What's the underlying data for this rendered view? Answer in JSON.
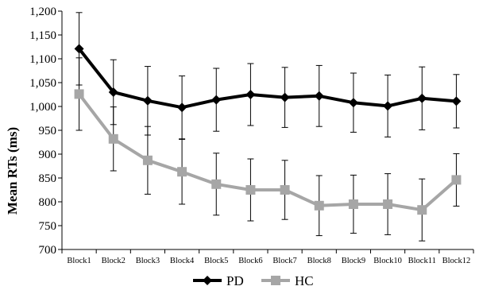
{
  "chart_data": {
    "type": "line",
    "title": "",
    "xlabel": "",
    "ylabel": "Mean RTs (ms)",
    "categories": [
      "Block1",
      "Block2",
      "Block3",
      "Block4",
      "Block5",
      "Block6",
      "Block7",
      "Block8",
      "Block9",
      "Block10",
      "Block11",
      "Block12"
    ],
    "ylim": [
      700,
      1200
    ],
    "yticks": [
      700,
      750,
      800,
      850,
      900,
      950,
      1000,
      1050,
      1100,
      1150,
      1200
    ],
    "ytick_labels": [
      "700",
      "750",
      "800",
      "850",
      "900",
      "950",
      "1,000",
      "1,050",
      "1,100",
      "1,150",
      "1,200"
    ],
    "grid": false,
    "legend_position": "bottom-center",
    "series": [
      {
        "name": "PD",
        "marker": "diamond",
        "color": "#000000",
        "values": [
          1121,
          1030,
          1012,
          998,
          1014,
          1025,
          1019,
          1022,
          1008,
          1001,
          1017,
          1011
        ],
        "error": [
          76,
          68,
          72,
          66,
          66,
          65,
          63,
          64,
          62,
          65,
          66,
          56
        ]
      },
      {
        "name": "HC",
        "marker": "square",
        "color": "#a6a6a6",
        "values": [
          1026,
          932,
          887,
          863,
          837,
          825,
          825,
          792,
          795,
          795,
          783,
          846
        ],
        "error": [
          76,
          67,
          71,
          68,
          65,
          65,
          62,
          63,
          61,
          64,
          65,
          55
        ]
      }
    ]
  }
}
